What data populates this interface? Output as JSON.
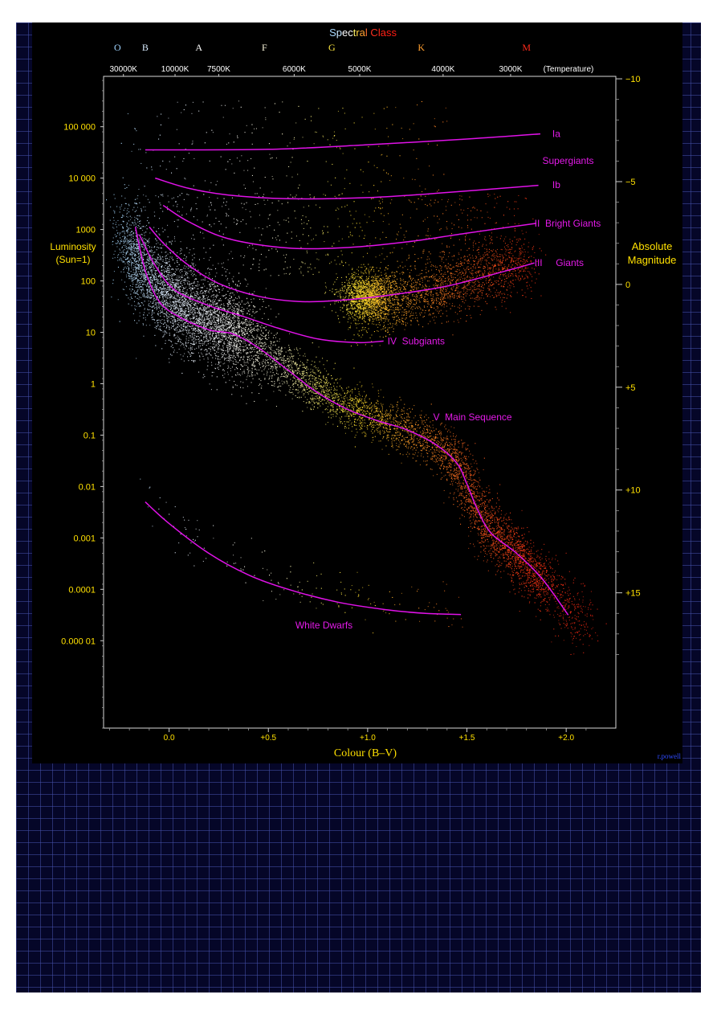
{
  "chart_data": {
    "type": "scatter",
    "title": "Spectral Class",
    "xlabel": "Colour (B–V)",
    "ylabel_left": "Luminosity (Sun=1)",
    "ylabel_left_lines": [
      "Luminosity",
      "(Sun=1)"
    ],
    "ylabel_right": "Absolute Magnitude",
    "ylabel_right_lines": [
      "Absolute",
      "Magnitude"
    ],
    "credit": "r.powell",
    "xlim": [
      -0.33,
      2.25
    ],
    "ylim_log10_luminosity": [
      -6.7,
      5.98
    ],
    "x_ticks": [
      {
        "value": 0.0,
        "label": "0.0"
      },
      {
        "value": 0.5,
        "label": "+0.5"
      },
      {
        "value": 1.0,
        "label": "+1.0"
      },
      {
        "value": 1.5,
        "label": "+1.5"
      },
      {
        "value": 2.0,
        "label": "+2.0"
      }
    ],
    "y_ticks_left": [
      {
        "log10L": 5,
        "label": "100 000"
      },
      {
        "log10L": 4,
        "label": "10 000"
      },
      {
        "log10L": 3,
        "label": "1000"
      },
      {
        "log10L": 2,
        "label": "100"
      },
      {
        "log10L": 1,
        "label": "10"
      },
      {
        "log10L": 0,
        "label": "1"
      },
      {
        "log10L": -1,
        "label": "0.1"
      },
      {
        "log10L": -2,
        "label": "0.01"
      },
      {
        "log10L": -3,
        "label": "0.001"
      },
      {
        "log10L": -4,
        "label": "0.0001"
      },
      {
        "log10L": -5,
        "label": "0.000 01"
      }
    ],
    "y_ticks_right": [
      {
        "magnitude": -10,
        "label": "−10"
      },
      {
        "magnitude": -5,
        "label": "−5"
      },
      {
        "magnitude": 0,
        "label": "0"
      },
      {
        "magnitude": 5,
        "label": "+5"
      },
      {
        "magnitude": 10,
        "label": "+10"
      },
      {
        "magnitude": 15,
        "label": "+15"
      }
    ],
    "spectral_classes": [
      {
        "label": "O",
        "bv": -0.26,
        "color": "#9fd3ff"
      },
      {
        "label": "B",
        "bv": -0.12,
        "color": "#d8ecff"
      },
      {
        "label": "A",
        "bv": 0.15,
        "color": "#ffffff"
      },
      {
        "label": "F",
        "bv": 0.48,
        "color": "#fffbe0"
      },
      {
        "label": "G",
        "bv": 0.82,
        "color": "#ffe840"
      },
      {
        "label": "K",
        "bv": 1.27,
        "color": "#ff9e2e"
      },
      {
        "label": "M",
        "bv": 1.8,
        "color": "#ff2a1a"
      }
    ],
    "temperature_ticks": [
      {
        "label": "30000K",
        "bv": -0.23
      },
      {
        "label": "10000K",
        "bv": 0.03
      },
      {
        "label": "7500K",
        "bv": 0.25
      },
      {
        "label": "6000K",
        "bv": 0.63
      },
      {
        "label": "5000K",
        "bv": 0.96
      },
      {
        "label": "4000K",
        "bv": 1.38
      },
      {
        "label": "3000K",
        "bv": 1.72
      }
    ],
    "temperature_label": "(Temperature)",
    "luminosity_classes": [
      {
        "name": "Ia",
        "text": "Ia",
        "label_bv": 1.93,
        "label_log10L": 4.86,
        "points": [
          [
            -0.12,
            4.55
          ],
          [
            0.5,
            4.56
          ],
          [
            1.0,
            4.65
          ],
          [
            1.5,
            4.76
          ],
          [
            1.87,
            4.86
          ]
        ]
      },
      {
        "name": "Supergiants",
        "text": "Supergiants",
        "label_bv": 1.88,
        "label_log10L": 4.34,
        "points": []
      },
      {
        "name": "Ib",
        "text": "Ib",
        "label_bv": 1.93,
        "label_log10L": 3.87,
        "points": [
          [
            -0.07,
            4.0
          ],
          [
            0.1,
            3.8
          ],
          [
            0.3,
            3.67
          ],
          [
            0.6,
            3.6
          ],
          [
            1.0,
            3.62
          ],
          [
            1.4,
            3.72
          ],
          [
            1.86,
            3.86
          ]
        ]
      },
      {
        "name": "II",
        "text": "II  Bright Giants",
        "label_bv": 1.84,
        "label_log10L": 3.12,
        "points": [
          [
            -0.03,
            3.47
          ],
          [
            0.1,
            3.15
          ],
          [
            0.3,
            2.82
          ],
          [
            0.6,
            2.64
          ],
          [
            0.9,
            2.65
          ],
          [
            1.2,
            2.76
          ],
          [
            1.5,
            2.93
          ],
          [
            1.85,
            3.12
          ]
        ]
      },
      {
        "name": "III",
        "text": "III     Giants",
        "label_bv": 1.84,
        "label_log10L": 2.35,
        "points": [
          [
            -0.1,
            3.05
          ],
          [
            -0.02,
            2.7
          ],
          [
            0.1,
            2.3
          ],
          [
            0.25,
            1.95
          ],
          [
            0.45,
            1.7
          ],
          [
            0.65,
            1.6
          ],
          [
            0.85,
            1.62
          ],
          [
            1.1,
            1.72
          ],
          [
            1.4,
            1.9
          ],
          [
            1.7,
            2.2
          ],
          [
            1.84,
            2.35
          ]
        ]
      },
      {
        "name": "IV",
        "text": "IV  Subgiants",
        "label_bv": 1.1,
        "label_log10L": 0.83,
        "points": [
          [
            -0.15,
            2.9
          ],
          [
            -0.07,
            2.3
          ],
          [
            0.03,
            1.82
          ],
          [
            0.2,
            1.52
          ],
          [
            0.38,
            1.3
          ],
          [
            0.55,
            1.08
          ],
          [
            0.75,
            0.87
          ],
          [
            0.95,
            0.8
          ],
          [
            1.08,
            0.83
          ]
        ]
      },
      {
        "name": "V",
        "text": "V  Main Sequence",
        "label_bv": 1.33,
        "label_log10L": -0.65,
        "points": [
          [
            -0.17,
            3.05
          ],
          [
            -0.12,
            2.2
          ],
          [
            -0.05,
            1.6
          ],
          [
            0.05,
            1.3
          ],
          [
            0.2,
            1.05
          ],
          [
            0.32,
            0.97
          ],
          [
            0.45,
            0.7
          ],
          [
            0.6,
            0.26
          ],
          [
            0.75,
            -0.18
          ],
          [
            0.9,
            -0.5
          ],
          [
            1.05,
            -0.72
          ],
          [
            1.2,
            -0.9
          ],
          [
            1.35,
            -1.2
          ],
          [
            1.45,
            -1.55
          ],
          [
            1.5,
            -1.95
          ],
          [
            1.55,
            -2.42
          ],
          [
            1.62,
            -2.9
          ],
          [
            1.75,
            -3.3
          ],
          [
            1.88,
            -3.8
          ],
          [
            2.01,
            -4.5
          ]
        ]
      },
      {
        "name": "White Dwarfs",
        "text": "White Dwarfs",
        "label_bv": 0.78,
        "label_log10L": -4.7,
        "points": [
          [
            -0.12,
            -2.3
          ],
          [
            0.0,
            -2.72
          ],
          [
            0.2,
            -3.3
          ],
          [
            0.4,
            -3.72
          ],
          [
            0.6,
            -4.0
          ],
          [
            0.85,
            -4.25
          ],
          [
            1.1,
            -4.4
          ],
          [
            1.3,
            -4.47
          ],
          [
            1.47,
            -4.49
          ]
        ]
      }
    ],
    "point_density_regions": [
      {
        "name": "main-sequence-band",
        "x_range": [
          -0.25,
          1.9
        ],
        "count": 5200
      },
      {
        "name": "upper-main-sequence",
        "x_range": [
          -0.2,
          0.4
        ],
        "count": 2600
      },
      {
        "name": "giant-clump",
        "center": [
          1.0,
          1.7
        ],
        "count": 1500
      },
      {
        "name": "red-giant-branch",
        "x_range": [
          0.95,
          1.8
        ],
        "count": 2000
      },
      {
        "name": "bright-giant-scatter",
        "x_range": [
          -0.2,
          1.8
        ],
        "count": 700
      },
      {
        "name": "supergiant-scatter",
        "x_range": [
          -0.25,
          1.4
        ],
        "count": 260
      },
      {
        "name": "white-dwarf-sequence",
        "x_range": [
          -0.1,
          1.45
        ],
        "count": 160
      },
      {
        "name": "red-dwarf-tail",
        "x_range": [
          1.4,
          2.1
        ],
        "count": 1200
      }
    ],
    "grid": false
  }
}
